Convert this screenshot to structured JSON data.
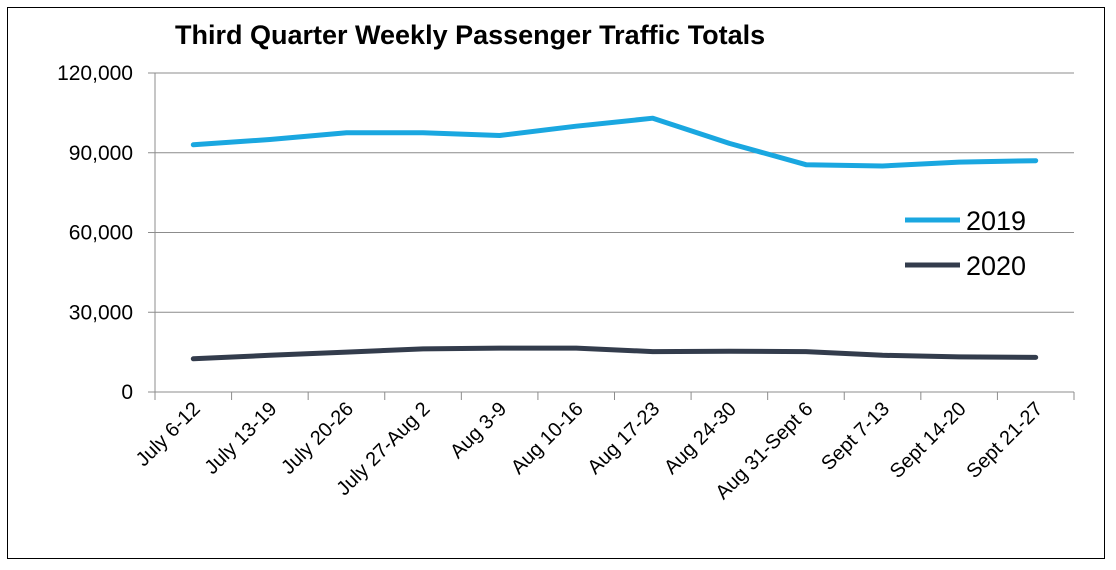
{
  "chart_data": {
    "type": "line",
    "title": "Third Quarter Weekly Passenger Traffic Totals",
    "xlabel": "",
    "ylabel": "",
    "categories": [
      "July 6-12",
      "July 13-19",
      "July 20-26",
      "July 27-Aug 2",
      "Aug 3-9",
      "Aug 10-16",
      "Aug 17-23",
      "Aug 24-30",
      "Aug 31-Sept 6",
      "Sept 7-13",
      "Sept 14-20",
      "Sept 21-27"
    ],
    "ylim": [
      0,
      120000
    ],
    "yticks": [
      0,
      30000,
      60000,
      90000,
      120000
    ],
    "ytick_labels": [
      "0",
      "30,000",
      "60,000",
      "90,000",
      "120,000"
    ],
    "grid": true,
    "legend_position": "right",
    "series": [
      {
        "name": "2019",
        "color": "#1aa7e0",
        "values": [
          93000,
          95000,
          97500,
          97500,
          96500,
          100000,
          103000,
          93500,
          85500,
          85000,
          86500,
          87000
        ]
      },
      {
        "name": "2020",
        "color": "#333c4c",
        "values": [
          12500,
          13800,
          15000,
          16200,
          16500,
          16500,
          15200,
          15300,
          15200,
          13800,
          13200,
          13000
        ]
      }
    ]
  }
}
